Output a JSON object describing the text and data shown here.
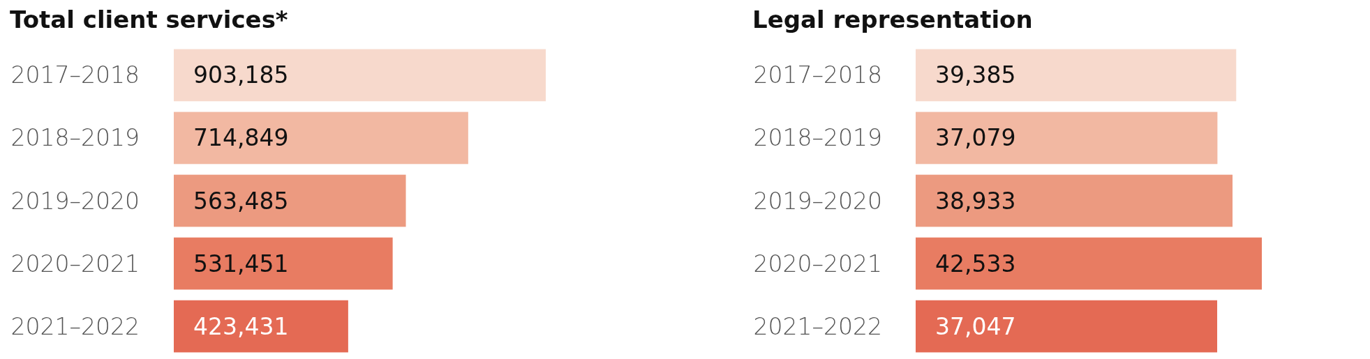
{
  "chart_data": [
    {
      "type": "bar",
      "orientation": "horizontal",
      "title": "Total client services*",
      "categories": [
        "2017–2018",
        "2018–2019",
        "2019–2020",
        "2020–2021",
        "2021–2022"
      ],
      "values": [
        903185,
        714849,
        563485,
        531451,
        423431
      ],
      "colors": [
        "#f7d9cc",
        "#f2b8a2",
        "#ec9a80",
        "#e87c62",
        "#e46a54"
      ],
      "value_labels": [
        "903,185",
        "714,849",
        "563,485",
        "531,451",
        "423,431"
      ]
    },
    {
      "type": "bar",
      "orientation": "horizontal",
      "title": "Legal representation",
      "categories": [
        "2017–2018",
        "2018–2019",
        "2019–2020",
        "2020–2021",
        "2021–2022"
      ],
      "values": [
        39385,
        37079,
        38933,
        42533,
        37047
      ],
      "colors": [
        "#f7d9cc",
        "#f2b8a2",
        "#ec9a80",
        "#e87c62",
        "#e46a54"
      ],
      "value_labels": [
        "39,385",
        "37,079",
        "38,933",
        "42,533",
        "37,047"
      ]
    }
  ]
}
